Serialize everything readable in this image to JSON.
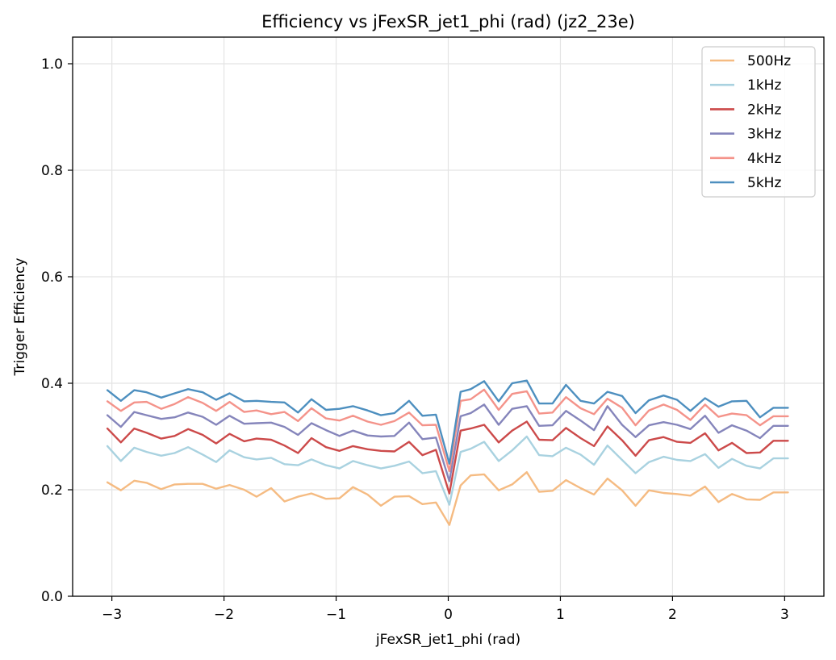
{
  "chart_data": {
    "type": "line",
    "title": "Efficiency vs jFexSR_jet1_phi (rad) (jz2_23e)",
    "xlabel": "jFexSR_jet1_phi (rad)",
    "ylabel": "Trigger Efficiency",
    "xlim": [
      -3.35,
      3.35
    ],
    "ylim": [
      0.0,
      1.05
    ],
    "xticks": [
      -3,
      -2,
      -1,
      0,
      1,
      2,
      3
    ],
    "xtick_labels": [
      "−3",
      "−2",
      "−1",
      "0",
      "1",
      "2",
      "3"
    ],
    "yticks": [
      0.0,
      0.2,
      0.4,
      0.6,
      0.8,
      1.0
    ],
    "ytick_labels": [
      "0.0",
      "0.2",
      "0.4",
      "0.6",
      "0.8",
      "1.0"
    ],
    "grid": true,
    "legend_position": "top-right",
    "x": [
      -3.04,
      -2.92,
      -2.8,
      -2.69,
      -2.56,
      -2.44,
      -2.32,
      -2.19,
      -2.07,
      -1.95,
      -1.82,
      -1.71,
      -1.58,
      -1.46,
      -1.34,
      -1.22,
      -1.09,
      -0.97,
      -0.85,
      -0.72,
      -0.6,
      -0.48,
      -0.35,
      -0.23,
      -0.11,
      0.01,
      0.11,
      0.2,
      0.32,
      0.45,
      0.57,
      0.7,
      0.81,
      0.93,
      1.05,
      1.18,
      1.3,
      1.42,
      1.55,
      1.67,
      1.79,
      1.92,
      2.04,
      2.16,
      2.29,
      2.41,
      2.53,
      2.66,
      2.78,
      2.9,
      3.03
    ],
    "series": [
      {
        "name": "500Hz",
        "color": "#f5bb82",
        "values": [
          0.214,
          0.199,
          0.217,
          0.213,
          0.201,
          0.21,
          0.211,
          0.211,
          0.202,
          0.209,
          0.2,
          0.187,
          0.203,
          0.178,
          0.187,
          0.193,
          0.183,
          0.184,
          0.205,
          0.191,
          0.17,
          0.187,
          0.188,
          0.173,
          0.176,
          0.134,
          0.208,
          0.227,
          0.229,
          0.199,
          0.21,
          0.233,
          0.196,
          0.198,
          0.218,
          0.203,
          0.191,
          0.221,
          0.199,
          0.17,
          0.199,
          0.194,
          0.192,
          0.189,
          0.206,
          0.177,
          0.192,
          0.182,
          0.181,
          0.195,
          0.195
        ]
      },
      {
        "name": "1kHz",
        "color": "#a9d2e0",
        "values": [
          0.282,
          0.254,
          0.279,
          0.271,
          0.264,
          0.269,
          0.28,
          0.266,
          0.252,
          0.274,
          0.261,
          0.257,
          0.26,
          0.248,
          0.246,
          0.257,
          0.246,
          0.24,
          0.254,
          0.246,
          0.24,
          0.245,
          0.253,
          0.231,
          0.235,
          0.172,
          0.271,
          0.277,
          0.29,
          0.254,
          0.274,
          0.3,
          0.265,
          0.263,
          0.279,
          0.266,
          0.247,
          0.283,
          0.256,
          0.231,
          0.252,
          0.262,
          0.256,
          0.254,
          0.267,
          0.241,
          0.258,
          0.245,
          0.24,
          0.259,
          0.259
        ]
      },
      {
        "name": "2kHz",
        "color": "#cc4a4a",
        "values": [
          0.315,
          0.289,
          0.315,
          0.307,
          0.296,
          0.301,
          0.314,
          0.303,
          0.287,
          0.305,
          0.291,
          0.296,
          0.294,
          0.283,
          0.269,
          0.297,
          0.28,
          0.273,
          0.282,
          0.276,
          0.273,
          0.272,
          0.29,
          0.265,
          0.275,
          0.193,
          0.311,
          0.315,
          0.322,
          0.289,
          0.311,
          0.328,
          0.294,
          0.293,
          0.316,
          0.297,
          0.282,
          0.319,
          0.293,
          0.264,
          0.293,
          0.299,
          0.29,
          0.288,
          0.306,
          0.274,
          0.288,
          0.269,
          0.27,
          0.292,
          0.292
        ]
      },
      {
        "name": "3kHz",
        "color": "#8585bb",
        "values": [
          0.34,
          0.318,
          0.346,
          0.34,
          0.333,
          0.336,
          0.345,
          0.337,
          0.322,
          0.339,
          0.324,
          0.325,
          0.326,
          0.318,
          0.303,
          0.325,
          0.312,
          0.301,
          0.311,
          0.302,
          0.3,
          0.301,
          0.326,
          0.295,
          0.298,
          0.216,
          0.338,
          0.344,
          0.36,
          0.322,
          0.352,
          0.357,
          0.32,
          0.321,
          0.348,
          0.33,
          0.312,
          0.357,
          0.322,
          0.299,
          0.321,
          0.327,
          0.322,
          0.314,
          0.339,
          0.307,
          0.321,
          0.311,
          0.297,
          0.32,
          0.32
        ]
      },
      {
        "name": "4kHz",
        "color": "#f4938a",
        "values": [
          0.366,
          0.348,
          0.364,
          0.365,
          0.352,
          0.361,
          0.374,
          0.363,
          0.348,
          0.365,
          0.346,
          0.349,
          0.342,
          0.346,
          0.329,
          0.353,
          0.334,
          0.33,
          0.339,
          0.328,
          0.322,
          0.329,
          0.345,
          0.321,
          0.322,
          0.235,
          0.367,
          0.37,
          0.388,
          0.35,
          0.38,
          0.385,
          0.343,
          0.345,
          0.374,
          0.353,
          0.342,
          0.371,
          0.354,
          0.321,
          0.349,
          0.36,
          0.35,
          0.331,
          0.36,
          0.337,
          0.343,
          0.34,
          0.321,
          0.338,
          0.338
        ]
      },
      {
        "name": "5kHz",
        "color": "#4d8fbf",
        "values": [
          0.387,
          0.367,
          0.387,
          0.383,
          0.373,
          0.381,
          0.389,
          0.383,
          0.369,
          0.381,
          0.366,
          0.367,
          0.365,
          0.364,
          0.345,
          0.37,
          0.35,
          0.352,
          0.357,
          0.349,
          0.34,
          0.344,
          0.367,
          0.339,
          0.341,
          0.249,
          0.384,
          0.389,
          0.404,
          0.366,
          0.4,
          0.405,
          0.362,
          0.362,
          0.397,
          0.367,
          0.362,
          0.384,
          0.376,
          0.344,
          0.368,
          0.377,
          0.369,
          0.348,
          0.372,
          0.356,
          0.366,
          0.367,
          0.336,
          0.354,
          0.354
        ]
      }
    ]
  }
}
